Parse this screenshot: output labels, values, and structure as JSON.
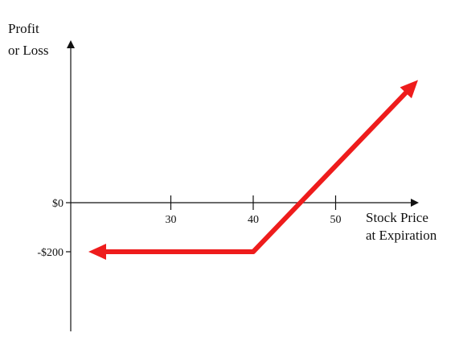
{
  "chart_data": {
    "type": "line",
    "title": "",
    "ylabel_lines": [
      "Profit",
      "or Loss"
    ],
    "xlabel_lines": [
      "Stock Price",
      "at Expiration"
    ],
    "x_ticks": [
      30,
      40,
      50
    ],
    "y_ticks": [
      {
        "value": 0,
        "label": "$0"
      },
      {
        "value": -200,
        "label": "-$200"
      }
    ],
    "xlim": [
      20,
      60
    ],
    "ylim": [
      -400,
      500
    ],
    "series": [
      {
        "x": [
          20,
          40,
          60
        ],
        "y": [
          -200,
          -200,
          500
        ],
        "color": "#ee1c1c",
        "arrow_left": true,
        "arrow_right": true
      }
    ],
    "axis_color": "#111111",
    "grid": false,
    "legend": "none"
  }
}
